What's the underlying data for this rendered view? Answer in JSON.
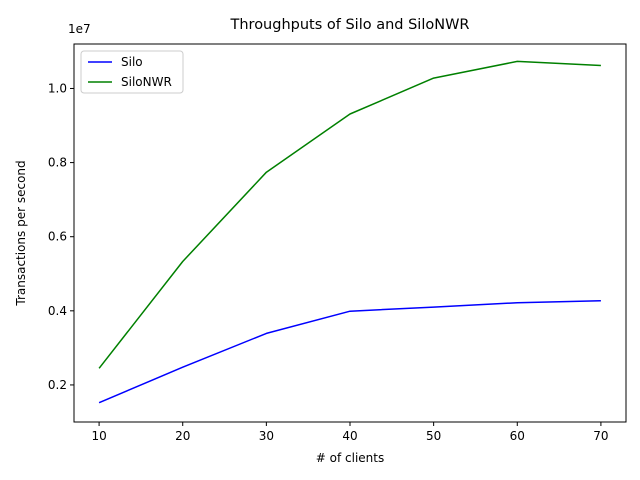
{
  "chart_data": {
    "type": "line",
    "title": "Throughputs of Silo and SiloNWR",
    "xlabel": "# of clients",
    "ylabel": "Transactions per second",
    "y_scale_label": "1e7",
    "x": [
      10,
      20,
      30,
      40,
      50,
      60,
      70
    ],
    "xlim": [
      7,
      73
    ],
    "ylim": [
      1000000,
      11200000
    ],
    "x_ticks": [
      10,
      20,
      30,
      40,
      50,
      60,
      70
    ],
    "y_ticks": [
      2000000,
      4000000,
      6000000,
      8000000,
      10000000
    ],
    "y_tick_labels": [
      "0.2",
      "0.4",
      "0.6",
      "0.8",
      "1.0"
    ],
    "grid": false,
    "legend_position": "top-left",
    "series": [
      {
        "name": "Silo",
        "color": "#0000ff",
        "values": [
          1520000,
          2480000,
          3390000,
          3990000,
          4100000,
          4220000,
          4270000
        ]
      },
      {
        "name": "SiloNWR",
        "color": "#008000",
        "values": [
          2450000,
          5330000,
          7740000,
          9310000,
          10280000,
          10730000,
          10620000
        ]
      }
    ]
  }
}
